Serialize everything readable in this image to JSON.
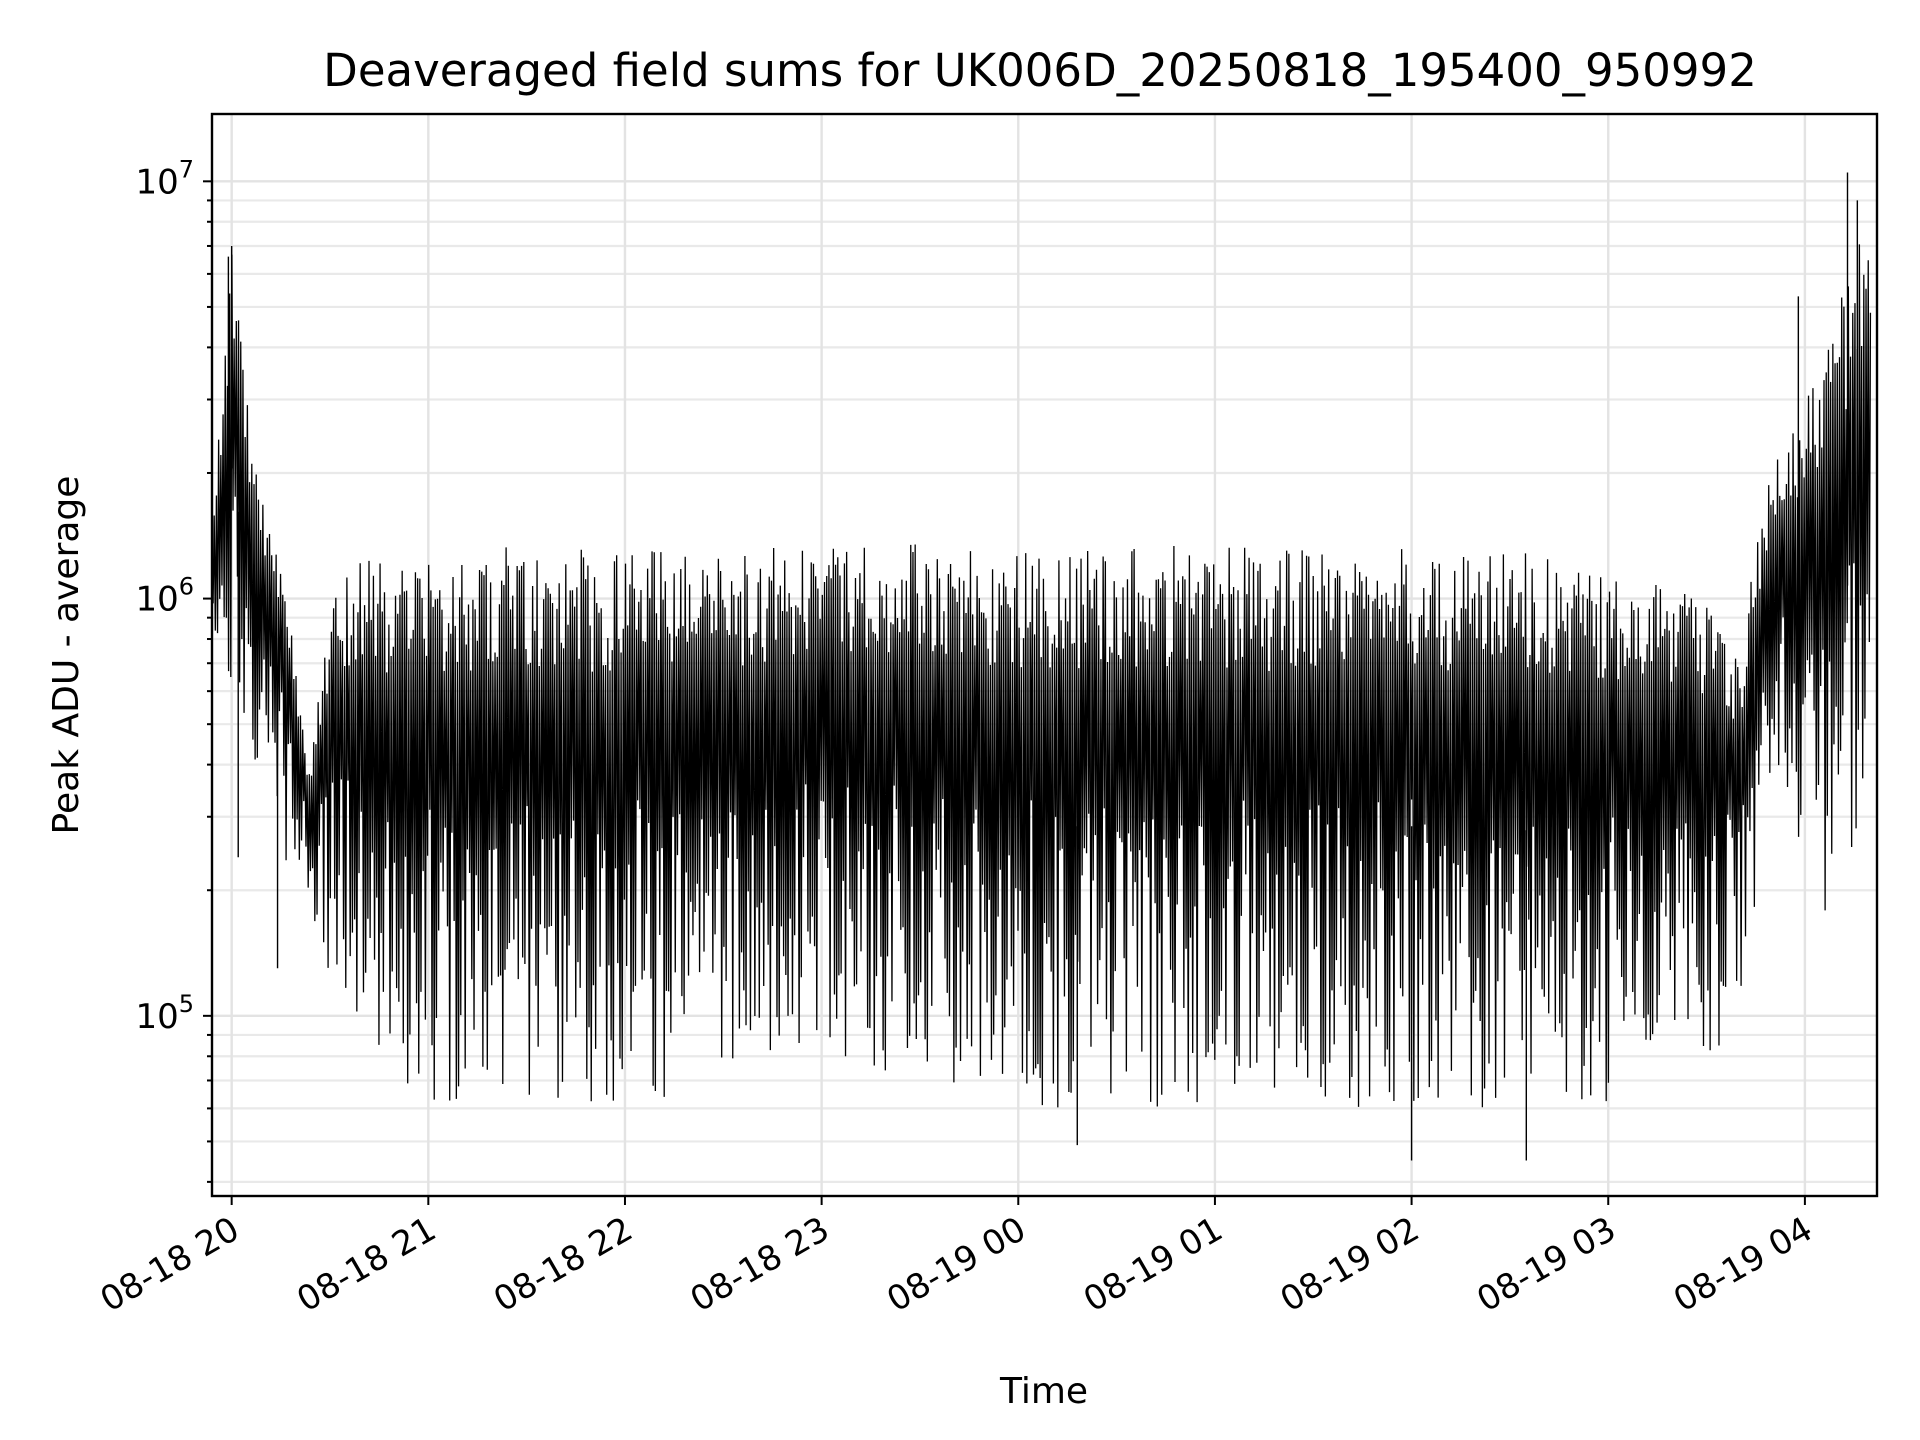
{
  "chart_data": {
    "type": "line",
    "title": "Deaveraged field sums for UK006D_20250818_195400_950992",
    "xlabel": "Time",
    "ylabel": "Peak ADU - average",
    "yscale": "log",
    "ylim": [
      37000,
      14500000
    ],
    "xlim": [
      "2025-08-18 19:54",
      "2025-08-19 04:22"
    ],
    "grid": true,
    "line_color": "#000000",
    "x_ticks": [
      {
        "label": "08-18 20",
        "time": "2025-08-18 20:00"
      },
      {
        "label": "08-18 21",
        "time": "2025-08-18 21:00"
      },
      {
        "label": "08-18 22",
        "time": "2025-08-18 22:00"
      },
      {
        "label": "08-18 23",
        "time": "2025-08-18 23:00"
      },
      {
        "label": "08-19 00",
        "time": "2025-08-19 00:00"
      },
      {
        "label": "08-19 01",
        "time": "2025-08-19 01:00"
      },
      {
        "label": "08-19 02",
        "time": "2025-08-19 02:00"
      },
      {
        "label": "08-19 03",
        "time": "2025-08-19 03:00"
      },
      {
        "label": "08-19 04",
        "time": "2025-08-19 04:00"
      }
    ],
    "y_ticks": [
      {
        "base": "10",
        "exp": "5",
        "value": 100000
      },
      {
        "base": "10",
        "exp": "6",
        "value": 1000000
      },
      {
        "base": "10",
        "exp": "7",
        "value": 10000000
      }
    ],
    "envelope": {
      "note": "dense oscillating series; each time sample has an upper and lower envelope value",
      "x": [
        "2025-08-18 19:54",
        "2025-08-18 20:00",
        "2025-08-18 20:06",
        "2025-08-18 20:12",
        "2025-08-18 20:18",
        "2025-08-18 20:24",
        "2025-08-18 20:30",
        "2025-08-18 20:36",
        "2025-08-18 20:45",
        "2025-08-18 21:00",
        "2025-08-18 21:30",
        "2025-08-18 22:00",
        "2025-08-18 22:30",
        "2025-08-18 23:00",
        "2025-08-18 23:30",
        "2025-08-19 00:00",
        "2025-08-19 00:30",
        "2025-08-19 01:00",
        "2025-08-19 01:30",
        "2025-08-19 02:00",
        "2025-08-19 02:30",
        "2025-08-19 03:00",
        "2025-08-19 03:30",
        "2025-08-19 03:40",
        "2025-08-19 03:50",
        "2025-08-19 04:00",
        "2025-08-19 04:10",
        "2025-08-19 04:20"
      ],
      "upper": [
        1500000,
        7000000,
        2500000,
        1500000,
        900000,
        400000,
        1000000,
        1200000,
        1250000,
        1300000,
        1350000,
        1300000,
        1300000,
        1350000,
        1350000,
        1350000,
        1350000,
        1350000,
        1300000,
        1350000,
        1300000,
        1250000,
        1000000,
        800000,
        2500000,
        3000000,
        5000000,
        10500000
      ],
      "lower": [
        700000,
        600000,
        400000,
        400000,
        200000,
        180000,
        120000,
        90000,
        70000,
        60000,
        60000,
        60000,
        70000,
        80000,
        70000,
        60000,
        60000,
        60000,
        60000,
        60000,
        60000,
        60000,
        80000,
        90000,
        300000,
        200000,
        150000,
        300000
      ]
    },
    "spikes": [
      {
        "x": "2025-08-18 20:00",
        "y": 7000000
      },
      {
        "x": "2025-08-18 19:59",
        "y": 6600000
      },
      {
        "x": "2025-08-18 20:02",
        "y": 240000
      },
      {
        "x": "2025-08-18 20:14",
        "y": 130000
      },
      {
        "x": "2025-08-19 00:18",
        "y": 49000
      },
      {
        "x": "2025-08-19 02:00",
        "y": 45000
      },
      {
        "x": "2025-08-19 02:35",
        "y": 45000
      },
      {
        "x": "2025-08-19 03:58",
        "y": 5300000
      },
      {
        "x": "2025-08-19 04:13",
        "y": 10500000
      },
      {
        "x": "2025-08-19 04:16",
        "y": 9000000
      }
    ]
  }
}
